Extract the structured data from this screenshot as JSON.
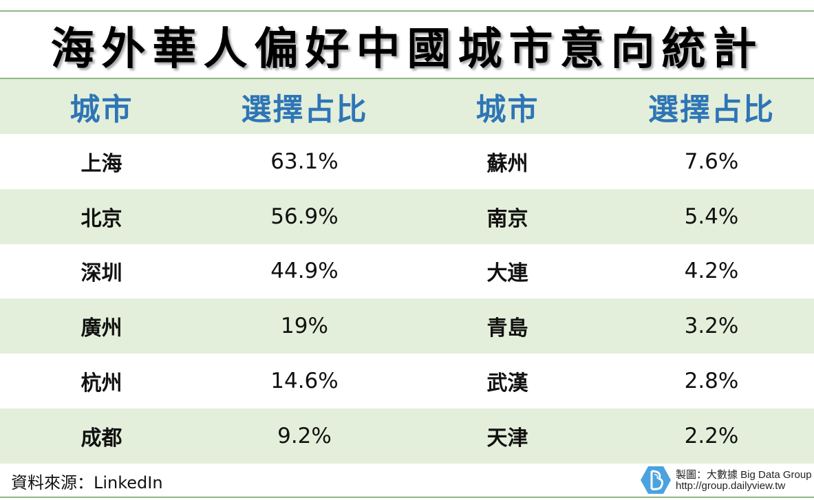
{
  "title": "海外華人偏好中國城市意向統計",
  "colors": {
    "header_bg": "#e3efda",
    "header_text": "#2e75b6",
    "rule": "#8cb883",
    "logo": "#4aa3df"
  },
  "chart_data": {
    "type": "table",
    "title": "海外華人偏好中國城市意向統計",
    "columns": [
      "城市",
      "選擇占比",
      "城市",
      "選擇占比"
    ],
    "rows": [
      [
        "上海",
        "63.1%",
        "蘇州",
        "7.6%"
      ],
      [
        "北京",
        "56.9%",
        "南京",
        "5.4%"
      ],
      [
        "深圳",
        "44.9%",
        "大連",
        "4.2%"
      ],
      [
        "廣州",
        "19%",
        "青島",
        "3.2%"
      ],
      [
        "杭州",
        "14.6%",
        "武漢",
        "2.8%"
      ],
      [
        "成都",
        "9.2%",
        "天津",
        "2.2%"
      ]
    ]
  },
  "footer": {
    "source": "資料來源：LinkedIn",
    "credit": "製圖：大數據 Big Data Group",
    "url": "http://group.dailyview.tw",
    "logo_icon": "big-data-logo-icon"
  }
}
